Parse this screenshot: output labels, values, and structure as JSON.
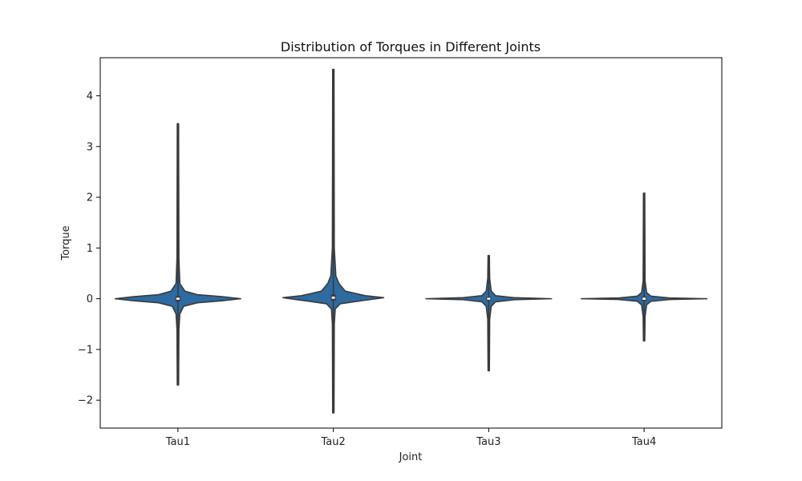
{
  "chart_data": {
    "type": "violin",
    "title": "Distribution of Torques in Different Joints",
    "xlabel": "Joint",
    "ylabel": "Torque",
    "categories": [
      "Tau1",
      "Tau2",
      "Tau3",
      "Tau4"
    ],
    "ylim": [
      -2.55,
      4.75
    ],
    "yticks": [
      -2,
      -1,
      0,
      1,
      2,
      3,
      4
    ],
    "ytick_labels": [
      "−2",
      "−1",
      "0",
      "1",
      "2",
      "3",
      "4"
    ],
    "grid": false,
    "legend": "none",
    "color": "#2d6ba1",
    "edge_color": "#3a3a3a",
    "violins": [
      {
        "category": "Tau1",
        "min": -1.7,
        "max": 3.45,
        "median": 0.0,
        "q1": -0.02,
        "q3": 0.02,
        "density": [
          [
            -1.7,
            0.0
          ],
          [
            -0.6,
            0.005
          ],
          [
            -0.3,
            0.02
          ],
          [
            -0.15,
            0.08
          ],
          [
            -0.08,
            0.3
          ],
          [
            -0.04,
            0.7
          ],
          [
            0.0,
            1.0
          ],
          [
            0.04,
            0.7
          ],
          [
            0.08,
            0.3
          ],
          [
            0.15,
            0.1
          ],
          [
            0.3,
            0.02
          ],
          [
            0.8,
            0.005
          ],
          [
            3.45,
            0.0
          ]
        ]
      },
      {
        "category": "Tau2",
        "min": -2.25,
        "max": 4.52,
        "median": 0.02,
        "q1": -0.01,
        "q3": 0.05,
        "density": [
          [
            -2.25,
            0.0
          ],
          [
            -0.5,
            0.005
          ],
          [
            -0.2,
            0.02
          ],
          [
            -0.1,
            0.1
          ],
          [
            -0.03,
            0.5
          ],
          [
            0.02,
            0.8
          ],
          [
            0.06,
            0.5
          ],
          [
            0.15,
            0.18
          ],
          [
            0.3,
            0.08
          ],
          [
            0.45,
            0.03
          ],
          [
            1.0,
            0.005
          ],
          [
            4.52,
            0.0
          ]
        ]
      },
      {
        "category": "Tau3",
        "min": -1.42,
        "max": 0.85,
        "median": 0.0,
        "q1": -0.01,
        "q3": 0.01,
        "density": [
          [
            -1.42,
            0.0
          ],
          [
            -0.4,
            0.005
          ],
          [
            -0.15,
            0.03
          ],
          [
            -0.06,
            0.1
          ],
          [
            -0.02,
            0.4
          ],
          [
            0.0,
            1.0
          ],
          [
            0.02,
            0.4
          ],
          [
            0.06,
            0.1
          ],
          [
            0.15,
            0.03
          ],
          [
            0.4,
            0.005
          ],
          [
            0.85,
            0.0
          ]
        ]
      },
      {
        "category": "Tau4",
        "min": -0.83,
        "max": 2.08,
        "median": 0.0,
        "q1": -0.01,
        "q3": 0.01,
        "density": [
          [
            -0.83,
            0.0
          ],
          [
            -0.35,
            0.005
          ],
          [
            -0.12,
            0.03
          ],
          [
            -0.05,
            0.1
          ],
          [
            -0.015,
            0.4
          ],
          [
            0.0,
            1.0
          ],
          [
            0.015,
            0.4
          ],
          [
            0.05,
            0.1
          ],
          [
            0.12,
            0.03
          ],
          [
            0.35,
            0.005
          ],
          [
            2.08,
            0.0
          ]
        ]
      }
    ]
  }
}
